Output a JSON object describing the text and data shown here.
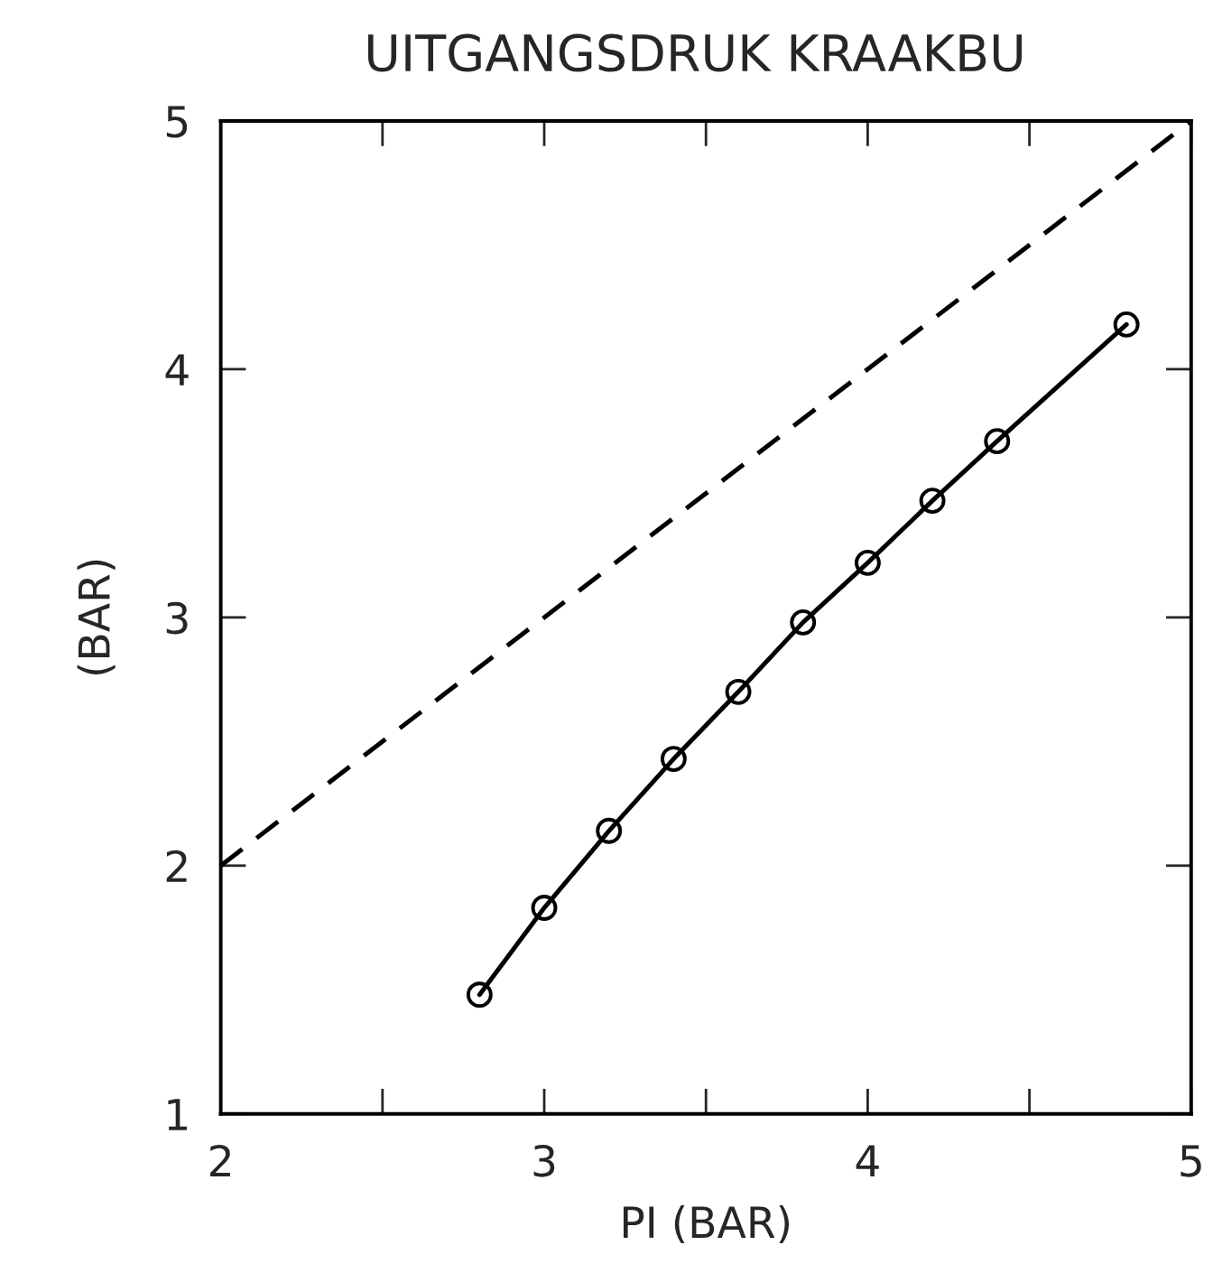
{
  "chart_data": {
    "type": "line",
    "title": "UITGANGSDRUK KRAAKBU",
    "xlabel": "PI (BAR)",
    "ylabel": "(BAR)",
    "xlim": [
      2,
      5
    ],
    "ylim": [
      1,
      5
    ],
    "xticks": [
      2,
      {
        "value": 2.5,
        "label": null
      },
      3,
      {
        "value": 3.5,
        "label": null
      },
      4,
      {
        "value": 4.5,
        "label": null
      },
      5
    ],
    "yticks": [
      1,
      2,
      3,
      4,
      5
    ],
    "grid": false,
    "legend": false,
    "series": [
      {
        "color": "#000000",
        "marker": "circle",
        "line_style": "solid",
        "x": [
          2.8,
          3.0,
          3.2,
          3.4,
          3.6,
          3.8,
          4.0,
          4.2,
          4.4,
          4.8
        ],
        "values": [
          1.48,
          1.83,
          2.14,
          2.43,
          2.7,
          2.98,
          3.22,
          3.47,
          3.71,
          4.18
        ]
      },
      {
        "color": "#000000",
        "marker": "none",
        "line_style": "dashed",
        "x": [
          2,
          5
        ],
        "values": [
          2,
          5
        ]
      }
    ]
  }
}
